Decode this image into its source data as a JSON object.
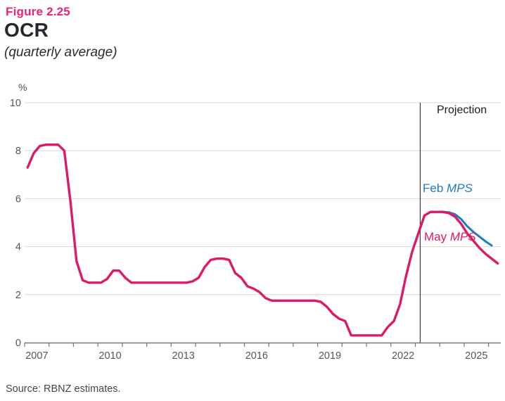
{
  "header": {
    "figure_label": "Figure 2.25",
    "title": "OCR",
    "subtitle": "(quarterly average)"
  },
  "source_note": "Source: RBNZ estimates.",
  "colors": {
    "figure_label_pink": "#ee2078",
    "title_dark": "#26262c",
    "line_pink": "#db1a6a",
    "line_blue": "#1e7dc2",
    "grid": "#d8d8d8",
    "axis": "#77777c",
    "tick_text": "#55555b",
    "projection_line": "#3a3a3a"
  },
  "annotations": {
    "projection": "Projection",
    "feb": {
      "prefix": "Feb ",
      "italic": "MPS"
    },
    "may": {
      "prefix": "May ",
      "italic": "MPS"
    }
  },
  "chart_data": {
    "type": "line",
    "title": "OCR (quarterly average)",
    "ylabel": "%",
    "xlabel": "",
    "ylim": [
      0,
      10
    ],
    "xlim": [
      2007,
      2026.5
    ],
    "grid": "horizontal",
    "y_ticks": [
      0,
      2,
      4,
      6,
      8,
      10
    ],
    "x_tick_years": [
      2007,
      2008,
      2009,
      2010,
      2011,
      2012,
      2013,
      2014,
      2015,
      2016,
      2017,
      2018,
      2019,
      2020,
      2021,
      2022,
      2023,
      2024,
      2025,
      2026
    ],
    "x_labels": [
      {
        "text": "2007",
        "x": 2007.5
      },
      {
        "text": "2010",
        "x": 2010.5
      },
      {
        "text": "2013",
        "x": 2013.5
      },
      {
        "text": "2016",
        "x": 2016.5
      },
      {
        "text": "2019",
        "x": 2019.5
      },
      {
        "text": "2022",
        "x": 2022.5
      },
      {
        "text": "2025",
        "x": 2025.5
      }
    ],
    "projection_boundary_x": 2023.2,
    "projection_label": "Projection",
    "legend_position": "on-chart",
    "series": [
      {
        "name": "Feb MPS",
        "color": "#1e7dc2",
        "stroke_width": 3,
        "points": [
          [
            2023.125,
            4.55
          ],
          [
            2023.375,
            5.3
          ],
          [
            2023.625,
            5.45
          ],
          [
            2023.875,
            5.45
          ],
          [
            2024.125,
            5.45
          ],
          [
            2024.375,
            5.43
          ],
          [
            2024.625,
            5.35
          ],
          [
            2024.875,
            5.15
          ],
          [
            2025.125,
            4.85
          ],
          [
            2025.375,
            4.62
          ],
          [
            2025.625,
            4.42
          ],
          [
            2025.875,
            4.22
          ],
          [
            2026.125,
            4.05
          ]
        ]
      },
      {
        "name": "May MPS",
        "color": "#db1a6a",
        "stroke_width": 3.4,
        "points": [
          [
            2007.125,
            7.3
          ],
          [
            2007.375,
            7.9
          ],
          [
            2007.625,
            8.2
          ],
          [
            2007.875,
            8.25
          ],
          [
            2008.125,
            8.25
          ],
          [
            2008.375,
            8.25
          ],
          [
            2008.625,
            8.0
          ],
          [
            2008.875,
            5.9
          ],
          [
            2009.125,
            3.4
          ],
          [
            2009.375,
            2.6
          ],
          [
            2009.625,
            2.5
          ],
          [
            2009.875,
            2.5
          ],
          [
            2010.125,
            2.5
          ],
          [
            2010.375,
            2.65
          ],
          [
            2010.625,
            3.0
          ],
          [
            2010.875,
            3.0
          ],
          [
            2011.125,
            2.7
          ],
          [
            2011.375,
            2.5
          ],
          [
            2011.625,
            2.5
          ],
          [
            2011.875,
            2.5
          ],
          [
            2012.125,
            2.5
          ],
          [
            2012.375,
            2.5
          ],
          [
            2012.625,
            2.5
          ],
          [
            2012.875,
            2.5
          ],
          [
            2013.125,
            2.5
          ],
          [
            2013.375,
            2.5
          ],
          [
            2013.625,
            2.5
          ],
          [
            2013.875,
            2.55
          ],
          [
            2014.125,
            2.7
          ],
          [
            2014.375,
            3.15
          ],
          [
            2014.625,
            3.45
          ],
          [
            2014.875,
            3.5
          ],
          [
            2015.125,
            3.5
          ],
          [
            2015.375,
            3.45
          ],
          [
            2015.625,
            2.9
          ],
          [
            2015.875,
            2.7
          ],
          [
            2016.125,
            2.35
          ],
          [
            2016.375,
            2.25
          ],
          [
            2016.625,
            2.1
          ],
          [
            2016.875,
            1.85
          ],
          [
            2017.125,
            1.75
          ],
          [
            2017.375,
            1.75
          ],
          [
            2017.625,
            1.75
          ],
          [
            2017.875,
            1.75
          ],
          [
            2018.125,
            1.75
          ],
          [
            2018.375,
            1.75
          ],
          [
            2018.625,
            1.75
          ],
          [
            2018.875,
            1.75
          ],
          [
            2019.125,
            1.7
          ],
          [
            2019.375,
            1.5
          ],
          [
            2019.625,
            1.2
          ],
          [
            2019.875,
            1.0
          ],
          [
            2020.125,
            0.9
          ],
          [
            2020.375,
            0.3
          ],
          [
            2020.625,
            0.3
          ],
          [
            2020.875,
            0.3
          ],
          [
            2021.125,
            0.3
          ],
          [
            2021.375,
            0.3
          ],
          [
            2021.625,
            0.3
          ],
          [
            2021.875,
            0.65
          ],
          [
            2022.125,
            0.9
          ],
          [
            2022.375,
            1.6
          ],
          [
            2022.625,
            2.8
          ],
          [
            2022.875,
            3.8
          ],
          [
            2023.125,
            4.55
          ],
          [
            2023.375,
            5.3
          ],
          [
            2023.625,
            5.45
          ],
          [
            2023.875,
            5.45
          ],
          [
            2024.125,
            5.45
          ],
          [
            2024.375,
            5.4
          ],
          [
            2024.625,
            5.25
          ],
          [
            2024.875,
            4.95
          ],
          [
            2025.125,
            4.55
          ],
          [
            2025.375,
            4.25
          ],
          [
            2025.625,
            3.95
          ],
          [
            2025.875,
            3.7
          ],
          [
            2026.125,
            3.5
          ],
          [
            2026.375,
            3.3
          ]
        ]
      }
    ]
  }
}
